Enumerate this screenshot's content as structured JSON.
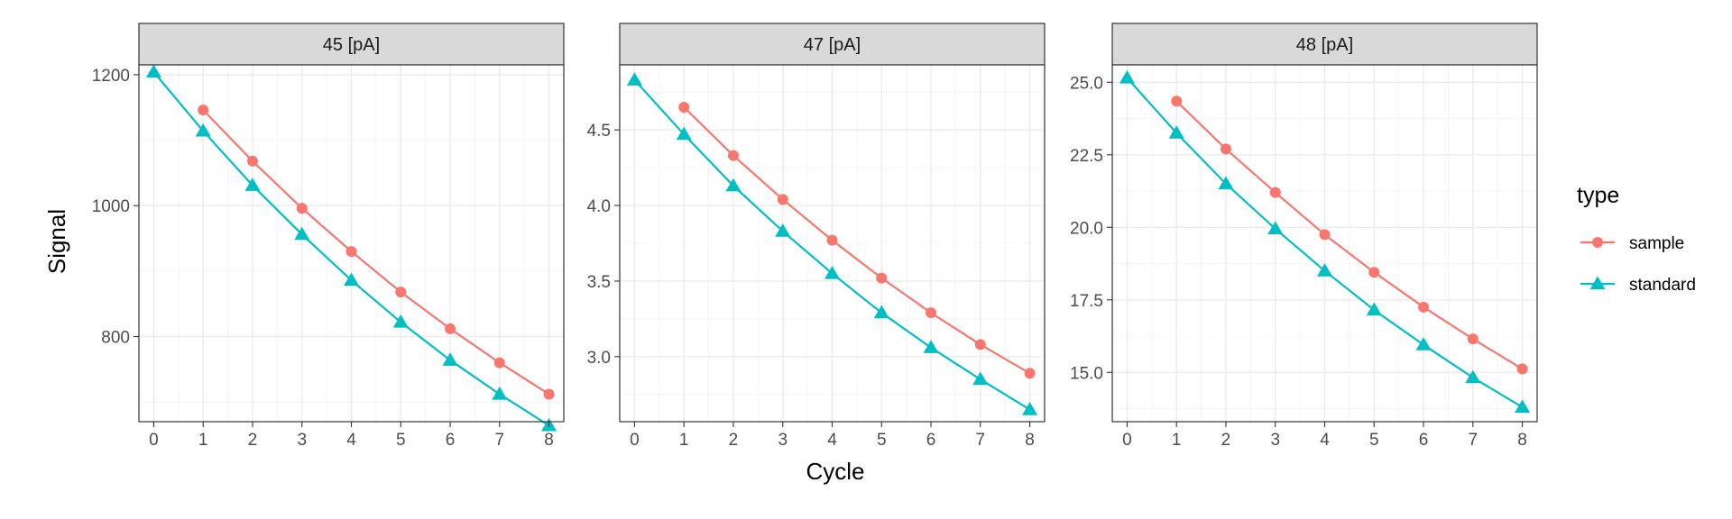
{
  "chart_data": {
    "type": "line",
    "xlabel": "Cycle",
    "ylabel": "Signal",
    "legend": {
      "title": "type",
      "placement": "right",
      "entries": [
        {
          "name": "sample",
          "color": "#F8766D",
          "shape": "circle"
        },
        {
          "name": "standard",
          "color": "#00BFC4",
          "shape": "triangle"
        }
      ]
    },
    "grid": true,
    "panels": [
      {
        "strip": "45 [pA]",
        "xlim": [
          -0.3,
          8.3
        ],
        "ylim": [
          670,
          1215
        ],
        "yticks": [
          800,
          1000,
          1200
        ],
        "ytick_labels": [
          "800",
          "1000",
          "1200"
        ],
        "xticks": [
          0,
          1,
          2,
          3,
          4,
          5,
          6,
          7,
          8
        ],
        "series": [
          {
            "name": "sample",
            "x": [
              1,
              2,
              3,
              4,
              5,
              6,
              7,
              8
            ],
            "values": [
              1146,
              1068,
              996,
              930,
              868,
              812,
              760,
              712
            ]
          },
          {
            "name": "standard",
            "x": [
              0,
              1,
              2,
              3,
              4,
              5,
              6,
              7,
              8
            ],
            "values": [
              1204,
              1114,
              1031,
              956,
              886,
              822,
              764,
              712,
              664
            ]
          }
        ]
      },
      {
        "strip": "47 [pA]",
        "xlim": [
          -0.3,
          8.3
        ],
        "ylim": [
          2.57,
          4.93
        ],
        "yticks": [
          3.0,
          3.5,
          4.0,
          4.5
        ],
        "ytick_labels": [
          "3.0",
          "3.5",
          "4.0",
          "4.5"
        ],
        "xticks": [
          0,
          1,
          2,
          3,
          4,
          5,
          6,
          7,
          8
        ],
        "series": [
          {
            "name": "sample",
            "x": [
              1,
              2,
              3,
              4,
              5,
              6,
              7,
              8
            ],
            "values": [
              4.65,
              4.33,
              4.04,
              3.77,
              3.52,
              3.29,
              3.08,
              2.89
            ]
          },
          {
            "name": "standard",
            "x": [
              0,
              1,
              2,
              3,
              4,
              5,
              6,
              7,
              8
            ],
            "values": [
              4.83,
              4.47,
              4.13,
              3.83,
              3.55,
              3.29,
              3.06,
              2.85,
              2.65
            ]
          }
        ]
      },
      {
        "strip": "48 [pA]",
        "xlim": [
          -0.3,
          8.3
        ],
        "ylim": [
          13.3,
          25.6
        ],
        "yticks": [
          15.0,
          17.5,
          20.0,
          22.5,
          25.0
        ],
        "ytick_labels": [
          "15.0",
          "17.5",
          "20.0",
          "22.5",
          "25.0"
        ],
        "xticks": [
          0,
          1,
          2,
          3,
          4,
          5,
          6,
          7,
          8
        ],
        "series": [
          {
            "name": "sample",
            "x": [
              1,
              2,
              3,
              4,
              5,
              6,
              7,
              8
            ],
            "values": [
              24.35,
              22.7,
              21.2,
              19.75,
              18.45,
              17.25,
              16.15,
              15.12
            ]
          },
          {
            "name": "standard",
            "x": [
              0,
              1,
              2,
              3,
              4,
              5,
              6,
              7,
              8
            ],
            "values": [
              25.15,
              23.25,
              21.5,
              19.95,
              18.5,
              17.15,
              15.95,
              14.82,
              13.8
            ]
          }
        ]
      }
    ]
  }
}
